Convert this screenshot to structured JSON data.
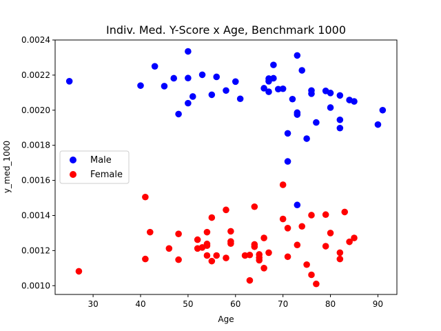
{
  "chart_data": {
    "type": "scatter",
    "title": "Indiv. Med. Y-Score x Age, Benchmark 1000",
    "xlabel": "Age",
    "ylabel": "y_med_1000",
    "xlim": [
      22,
      94
    ],
    "ylim": [
      0.00095,
      0.0024
    ],
    "xticks": [
      30,
      40,
      50,
      60,
      70,
      80,
      90
    ],
    "yticks": [
      0.001,
      0.0012,
      0.0014,
      0.0016,
      0.0018,
      0.002,
      0.0022,
      0.0024
    ],
    "ytick_labels": [
      "0.0010",
      "0.0012",
      "0.0014",
      "0.0016",
      "0.0018",
      "0.0020",
      "0.0022",
      "0.0024"
    ],
    "grid": false,
    "legend": "center-left",
    "series": [
      {
        "name": "Male",
        "color": "#0000ff",
        "points": [
          [
            25,
            0.002165
          ],
          [
            40,
            0.00214
          ],
          [
            43,
            0.00225
          ],
          [
            45,
            0.002137
          ],
          [
            47,
            0.002182
          ],
          [
            48,
            0.001978
          ],
          [
            50,
            0.002335
          ],
          [
            50,
            0.002183
          ],
          [
            50,
            0.00204
          ],
          [
            51,
            0.002078
          ],
          [
            53,
            0.002202
          ],
          [
            55,
            0.002088
          ],
          [
            56,
            0.00219
          ],
          [
            58,
            0.002112
          ],
          [
            60,
            0.002163
          ],
          [
            61,
            0.002065
          ],
          [
            66,
            0.002125
          ],
          [
            67,
            0.00218
          ],
          [
            67,
            0.002165
          ],
          [
            67,
            0.002105
          ],
          [
            68,
            0.002258
          ],
          [
            68,
            0.002182
          ],
          [
            69,
            0.00212
          ],
          [
            70,
            0.002122
          ],
          [
            71,
            0.001868
          ],
          [
            71,
            0.001708
          ],
          [
            72,
            0.002063
          ],
          [
            73,
            0.002312
          ],
          [
            73,
            0.001986
          ],
          [
            73,
            0.001975
          ],
          [
            73,
            0.00146
          ],
          [
            74,
            0.002227
          ],
          [
            75,
            0.001838
          ],
          [
            76,
            0.002112
          ],
          [
            76,
            0.002094
          ],
          [
            77,
            0.00193
          ],
          [
            79,
            0.00211
          ],
          [
            80,
            0.002098
          ],
          [
            80,
            0.002015
          ],
          [
            82,
            0.002084
          ],
          [
            82,
            0.001945
          ],
          [
            82,
            0.001898
          ],
          [
            84,
            0.002058
          ],
          [
            85,
            0.00205
          ],
          [
            90,
            0.001918
          ],
          [
            91,
            0.002
          ]
        ]
      },
      {
        "name": "Female",
        "color": "#ff0000",
        "points": [
          [
            27,
            0.001082
          ],
          [
            41,
            0.001505
          ],
          [
            41,
            0.001152
          ],
          [
            42,
            0.001305
          ],
          [
            46,
            0.001212
          ],
          [
            48,
            0.001295
          ],
          [
            48,
            0.001148
          ],
          [
            52,
            0.001262
          ],
          [
            52,
            0.001212
          ],
          [
            53,
            0.001218
          ],
          [
            54,
            0.001305
          ],
          [
            54,
            0.001238
          ],
          [
            54,
            0.001228
          ],
          [
            54,
            0.001172
          ],
          [
            55,
            0.001388
          ],
          [
            55,
            0.00114
          ],
          [
            56,
            0.001172
          ],
          [
            58,
            0.001432
          ],
          [
            58,
            0.001158
          ],
          [
            59,
            0.00131
          ],
          [
            59,
            0.001252
          ],
          [
            59,
            0.00124
          ],
          [
            62,
            0.001172
          ],
          [
            63,
            0.001175
          ],
          [
            63,
            0.00103
          ],
          [
            64,
            0.00145
          ],
          [
            64,
            0.001235
          ],
          [
            64,
            0.001222
          ],
          [
            65,
            0.001178
          ],
          [
            65,
            0.00116
          ],
          [
            65,
            0.001145
          ],
          [
            66,
            0.001272
          ],
          [
            66,
            0.0011
          ],
          [
            67,
            0.001188
          ],
          [
            70,
            0.001575
          ],
          [
            70,
            0.00138
          ],
          [
            71,
            0.001328
          ],
          [
            71,
            0.001165
          ],
          [
            73,
            0.001232
          ],
          [
            74,
            0.001338
          ],
          [
            75,
            0.00112
          ],
          [
            76,
            0.001402
          ],
          [
            76,
            0.001062
          ],
          [
            77,
            0.00101
          ],
          [
            79,
            0.001405
          ],
          [
            79,
            0.001225
          ],
          [
            80,
            0.0013
          ],
          [
            82,
            0.001188
          ],
          [
            82,
            0.001152
          ],
          [
            83,
            0.00142
          ],
          [
            84,
            0.00125
          ],
          [
            85,
            0.001272
          ]
        ]
      }
    ]
  }
}
